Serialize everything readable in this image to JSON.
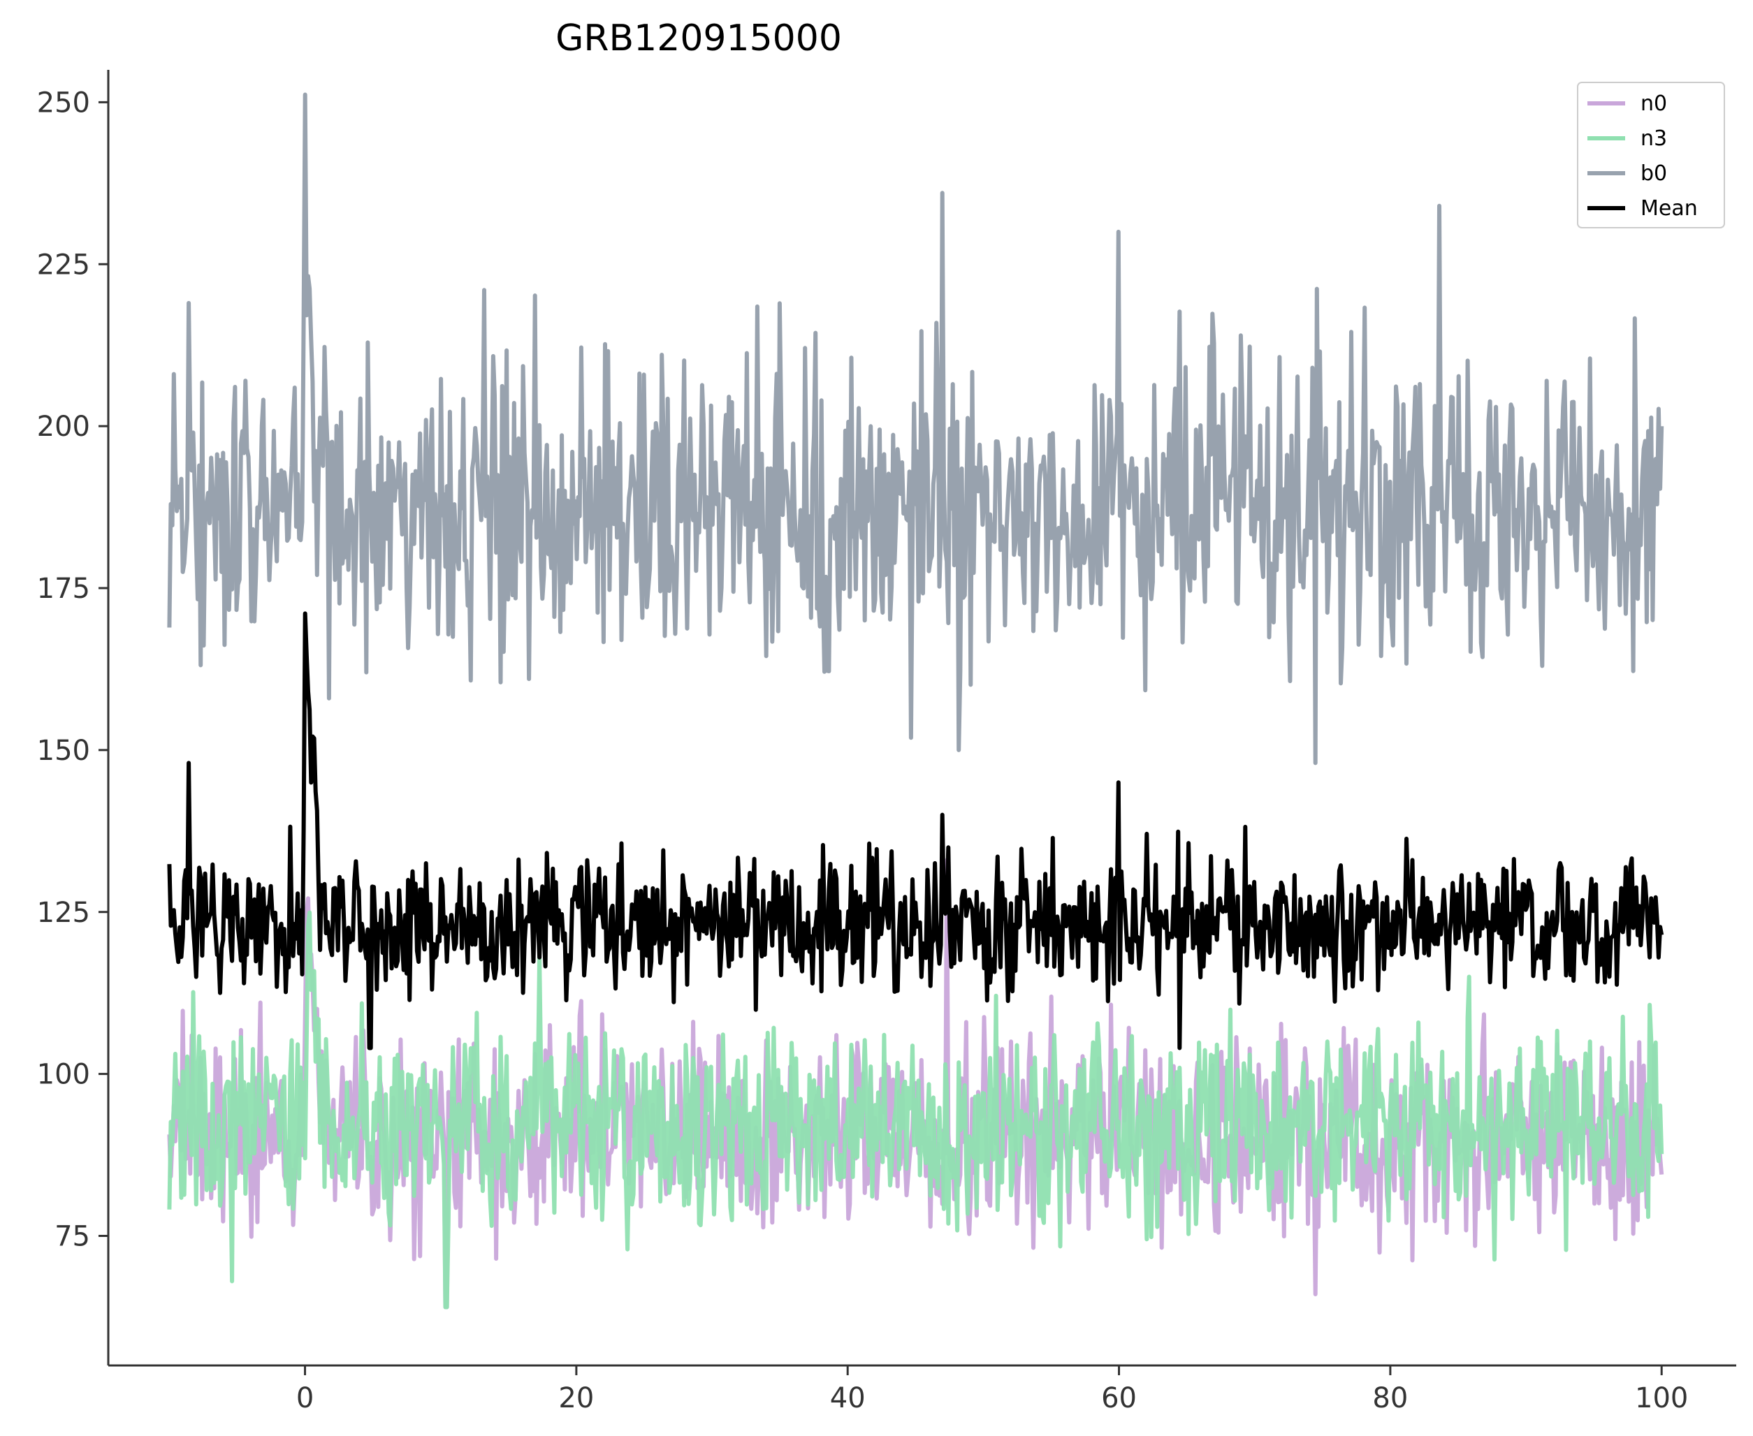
{
  "chart_data": {
    "type": "line",
    "title": "GRB120915000",
    "xlabel": "",
    "ylabel": "",
    "xlim": [
      -14.5,
      105.5
    ],
    "ylim": [
      55,
      255
    ],
    "x_ticks": [
      0,
      20,
      40,
      60,
      80,
      100
    ],
    "y_ticks": [
      75,
      100,
      125,
      150,
      175,
      200,
      225,
      250
    ],
    "grid": false,
    "legend_position": "top-right",
    "x_range": [
      -10,
      100
    ],
    "n_points": 1000,
    "series": [
      {
        "name": "n0",
        "color": "#c9a6da",
        "baseline": 91,
        "noise": 9,
        "peak_x": 0.1,
        "peak_y": 130,
        "spikes": [
          [
            10.4,
            64
          ],
          [
            47.3,
            133
          ],
          [
            74.5,
            66
          ]
        ]
      },
      {
        "name": "n3",
        "color": "#8fe0b0",
        "baseline": 92,
        "noise": 9,
        "peak_x": 0.2,
        "peak_y": 137,
        "spikes": [
          [
            -5.4,
            68
          ],
          [
            10.4,
            64
          ],
          [
            85.8,
            115
          ]
        ]
      },
      {
        "name": "b0",
        "color": "#98a2ae",
        "baseline": 187,
        "noise": 14,
        "peak_x": 0.0,
        "peak_y": 246,
        "spikes": [
          [
            -8.6,
            219
          ],
          [
            47.0,
            236
          ],
          [
            48.2,
            150
          ],
          [
            60.0,
            230
          ],
          [
            74.5,
            148
          ],
          [
            83.6,
            234
          ]
        ]
      },
      {
        "name": "Mean",
        "color": "#000000",
        "baseline": 123,
        "noise": 6.5,
        "peak_x": 0.0,
        "peak_y": 177,
        "spikes": [
          [
            -8.6,
            148
          ],
          [
            4.8,
            104
          ],
          [
            47.0,
            140
          ],
          [
            60.0,
            145
          ],
          [
            64.5,
            104
          ]
        ]
      }
    ]
  }
}
